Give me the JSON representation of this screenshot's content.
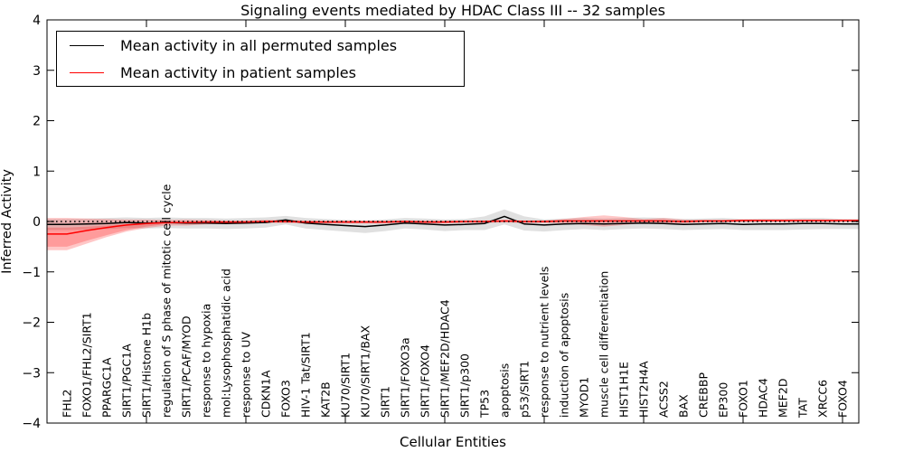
{
  "chart_data": {
    "type": "line",
    "title": "Signaling events mediated by HDAC Class III -- 32 samples",
    "xlabel": "Cellular Entities",
    "ylabel": "Inferred Activity",
    "ylim": [
      -4,
      4
    ],
    "y_ticks": [
      -4,
      -3,
      -2,
      -1,
      0,
      1,
      2,
      3,
      4
    ],
    "x_major_ticks_every": 5,
    "grid": false,
    "legend_position": "upper left",
    "zero_reference_line": {
      "style": "dotted",
      "color": "#000000",
      "y": 0
    },
    "categories": [
      "FHL2",
      "FOXO1/FHL2/SIRT1",
      "PPARGC1A",
      "SIRT1/PGC1A",
      "SIRT1/Histone H1b",
      "regulation of S phase of mitotic cell cycle",
      "SIRT1/PCAF/MYOD",
      "response to hypoxia",
      "mol:Lysophosphatidic acid",
      "response to UV",
      "CDKN1A",
      "FOXO3",
      "HIV-1 Tat/SIRT1",
      "KAT2B",
      "KU70/SIRT1",
      "KU70/SIRT1/BAX",
      "SIRT1",
      "SIRT1/FOXO3a",
      "SIRT1/FOXO4",
      "SIRT1/MEF2D/HDAC4",
      "SIRT1/p300",
      "TP53",
      "apoptosis",
      "p53/SIRT1",
      "response to nutrient levels",
      "induction of apoptosis",
      "MYOD1",
      "muscle cell differentiation",
      "HIST1H1E",
      "HIST2H4A",
      "ACSS2",
      "BAX",
      "CREBBP",
      "EP300",
      "FOXO1",
      "HDAC4",
      "MEF2D",
      "TAT",
      "XRCC6",
      "FOXO4"
    ],
    "series": [
      {
        "name": "Mean activity in all permuted samples",
        "color": "#000000",
        "values": [
          -0.06,
          -0.05,
          -0.04,
          -0.02,
          -0.03,
          -0.02,
          -0.03,
          -0.03,
          -0.04,
          -0.03,
          -0.02,
          0.03,
          -0.03,
          -0.06,
          -0.08,
          -0.1,
          -0.07,
          -0.03,
          -0.05,
          -0.07,
          -0.06,
          -0.04,
          0.1,
          -0.05,
          -0.07,
          -0.05,
          -0.04,
          -0.05,
          -0.04,
          -0.03,
          -0.04,
          -0.06,
          -0.05,
          -0.04,
          -0.06,
          -0.05,
          -0.05,
          -0.04,
          -0.04,
          -0.05
        ]
      },
      {
        "name": "Mean activity in patient samples",
        "color": "#ff0000",
        "values": [
          -0.25,
          -0.18,
          -0.12,
          -0.07,
          -0.04,
          -0.02,
          -0.02,
          -0.01,
          -0.01,
          -0.01,
          0,
          0,
          -0.01,
          -0.01,
          -0.01,
          -0.01,
          -0.01,
          0,
          -0.01,
          -0.01,
          0,
          0,
          0.01,
          0,
          0,
          0.01,
          0.01,
          0.01,
          0.01,
          0.01,
          0.01,
          0,
          0.01,
          0.01,
          0.02,
          0.02,
          0.02,
          0.02,
          0.02,
          0.02
        ]
      }
    ],
    "bands": [
      {
        "name": "permuted-samples-spread",
        "color": "#999999",
        "opacity": 0.3,
        "upper": [
          0.05,
          0.06,
          0.07,
          0.08,
          0.07,
          0.08,
          0.07,
          0.07,
          0.06,
          0.07,
          0.08,
          0.11,
          0.07,
          0.05,
          0.03,
          0.02,
          0.04,
          0.07,
          0.06,
          0.04,
          0.05,
          0.1,
          0.24,
          0.1,
          0.04,
          0.06,
          0.07,
          0.06,
          0.07,
          0.08,
          0.07,
          0.05,
          0.06,
          0.07,
          0.05,
          0.06,
          0.06,
          0.07,
          0.07,
          0.05
        ],
        "lower": [
          -0.17,
          -0.16,
          -0.15,
          -0.13,
          -0.14,
          -0.13,
          -0.14,
          -0.14,
          -0.15,
          -0.14,
          -0.12,
          -0.06,
          -0.14,
          -0.17,
          -0.2,
          -0.23,
          -0.19,
          -0.14,
          -0.16,
          -0.19,
          -0.17,
          -0.17,
          -0.06,
          -0.18,
          -0.2,
          -0.17,
          -0.15,
          -0.17,
          -0.15,
          -0.14,
          -0.15,
          -0.17,
          -0.16,
          -0.15,
          -0.17,
          -0.17,
          -0.17,
          -0.16,
          -0.15,
          -0.15
        ]
      },
      {
        "name": "patient-samples-spread",
        "color": "#ff0000",
        "opacity": 0.22,
        "upper": [
          0.07,
          0.06,
          0.05,
          0.04,
          0.04,
          0.03,
          0.04,
          0.03,
          0.02,
          0.02,
          0.03,
          0.03,
          0.02,
          0.02,
          0.02,
          0.02,
          0.02,
          0.02,
          0.02,
          0.02,
          0.02,
          0.02,
          0.03,
          0.02,
          0.02,
          0.05,
          0.09,
          0.12,
          0.09,
          0.05,
          0.07,
          0.04,
          0.03,
          0.03,
          0.04,
          0.04,
          0.04,
          0.04,
          0.04,
          0.04
        ],
        "lower": [
          -0.57,
          -0.44,
          -0.31,
          -0.2,
          -0.13,
          -0.08,
          -0.08,
          -0.06,
          -0.04,
          -0.04,
          -0.03,
          -0.03,
          -0.04,
          -0.04,
          -0.04,
          -0.04,
          -0.04,
          -0.03,
          -0.04,
          -0.04,
          -0.03,
          -0.03,
          -0.02,
          -0.03,
          -0.03,
          -0.04,
          -0.07,
          -0.1,
          -0.07,
          -0.03,
          -0.05,
          -0.04,
          -0.02,
          -0.02,
          -0.01,
          -0.01,
          -0.01,
          -0.01,
          -0.01,
          -0.01
        ]
      },
      {
        "name": "patient-samples-spread-inner",
        "color": "#ff0000",
        "opacity": 0.22,
        "upper": [
          -0.12,
          -0.1,
          -0.08,
          -0.05,
          -0.03,
          -0.02,
          -0.02,
          -0.01,
          -0.01,
          -0.01,
          0,
          0,
          -0.01,
          -0.01,
          -0.01,
          -0.01,
          -0.01,
          0,
          -0.01,
          -0.01,
          0,
          0,
          0.01,
          0,
          0,
          0.01,
          0.01,
          0.01,
          0.01,
          0.01,
          0.01,
          0,
          0.01,
          0.01,
          0.02,
          0.02,
          0.02,
          0.02,
          0.02,
          0.02
        ],
        "lower": [
          -0.5,
          -0.38,
          -0.27,
          -0.17,
          -0.1,
          -0.05,
          -0.02,
          -0.01,
          -0.01,
          -0.01,
          0,
          0,
          -0.01,
          -0.01,
          -0.01,
          -0.01,
          -0.01,
          0,
          -0.01,
          -0.01,
          0,
          0,
          0.01,
          0,
          0,
          0.01,
          0.01,
          0.01,
          0.01,
          0.01,
          0.01,
          0,
          0.01,
          0.01,
          0.02,
          0.02,
          0.02,
          0.02,
          0.02,
          0.02
        ]
      }
    ]
  }
}
